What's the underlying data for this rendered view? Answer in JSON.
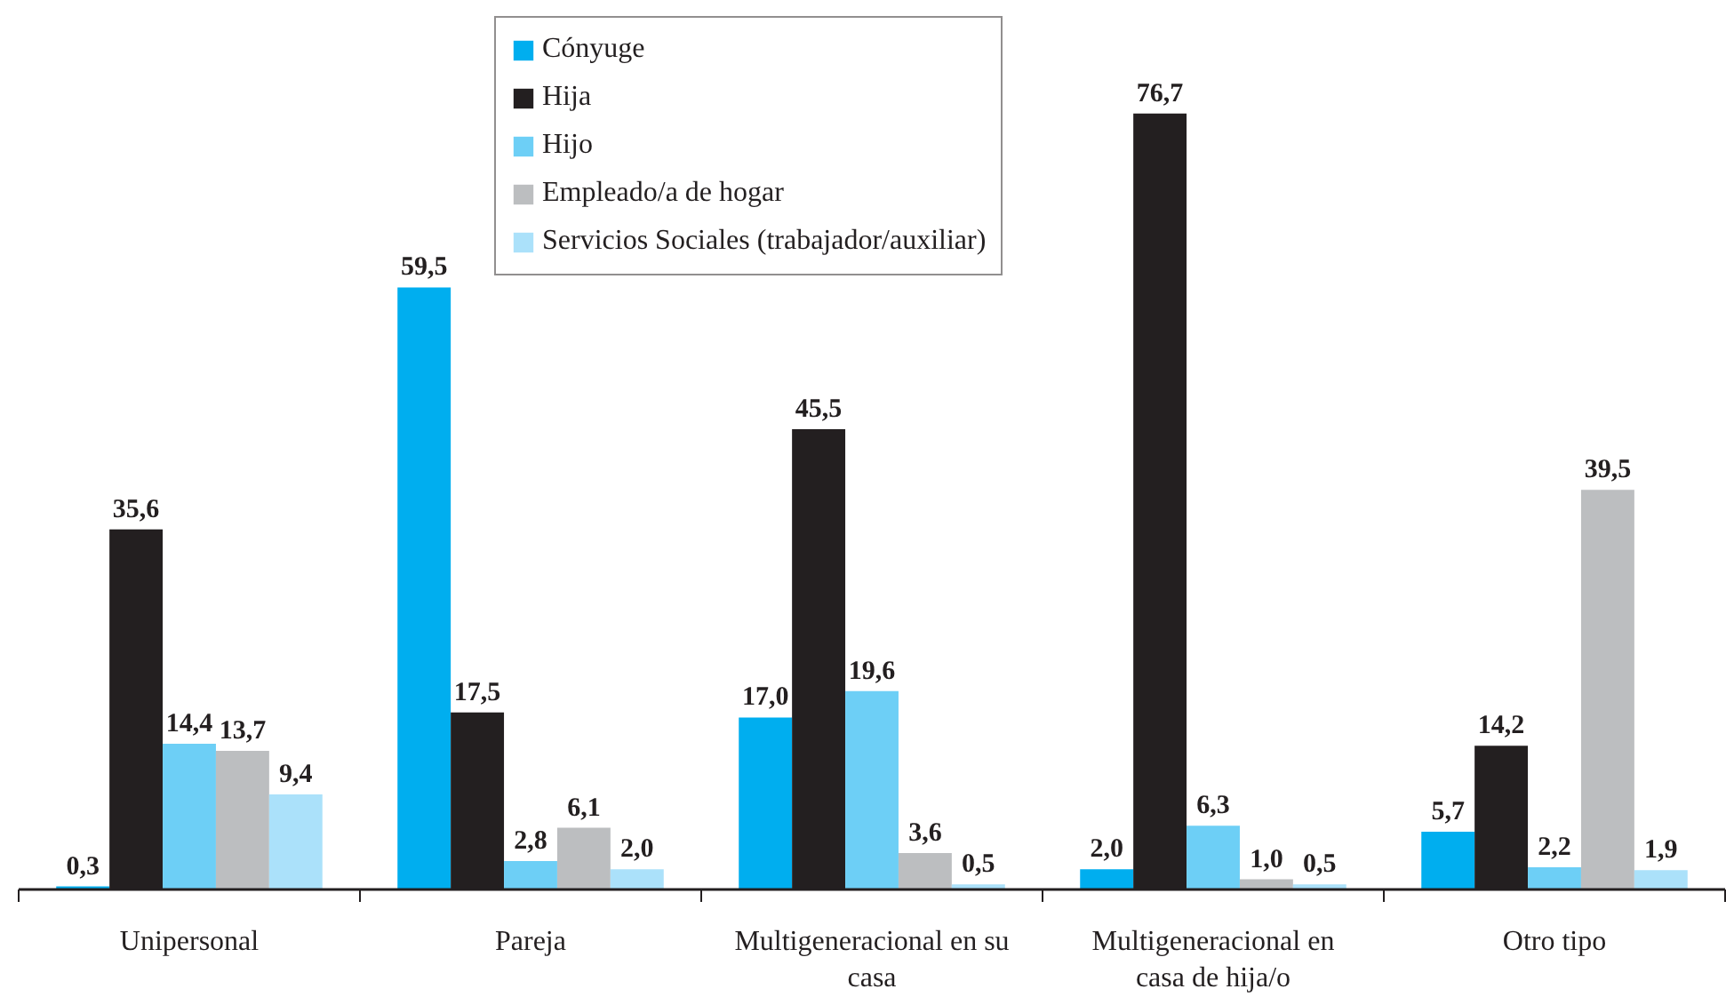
{
  "chart_data": {
    "type": "bar",
    "categories": [
      "Unipersonal",
      "Pareja",
      "Multigeneracional en su casa",
      "Multigeneracional en casa de hija/o",
      "Otro tipo"
    ],
    "series": [
      {
        "name": "Cónyuge",
        "color": "#00aeef",
        "values": [
          0.3,
          59.5,
          17.0,
          2.0,
          5.7
        ],
        "value_labels": [
          "0,3",
          "59,5",
          "17,0",
          "2,0",
          "5,7"
        ]
      },
      {
        "name": "Hija",
        "color": "#231f20",
        "values": [
          35.6,
          17.5,
          45.5,
          76.7,
          14.2
        ],
        "value_labels": [
          "35,6",
          "17,5",
          "45,5",
          "76,7",
          "14,2"
        ]
      },
      {
        "name": "Hijo",
        "color": "#6dcff6",
        "values": [
          14.4,
          2.8,
          19.6,
          6.3,
          2.2
        ],
        "value_labels": [
          "14,4",
          "2,8",
          "19,6",
          "6,3",
          "2,2"
        ]
      },
      {
        "name": "Empleado/a de hogar",
        "color": "#bcbec0",
        "values": [
          13.7,
          6.1,
          3.6,
          1.0,
          39.5
        ],
        "value_labels": [
          "13,7",
          "6,1",
          "3,6",
          "1,0",
          "39,5"
        ]
      },
      {
        "name": "Servicios Sociales (trabajador/auxiliar)",
        "color": "#abe1fa",
        "values": [
          9.4,
          2.0,
          0.5,
          0.5,
          1.9
        ],
        "value_labels": [
          "9,4",
          "2,0",
          "0,5",
          "0,5",
          "1,9"
        ]
      }
    ],
    "legend": "top",
    "tick_labels": "x",
    "grid": false
  }
}
